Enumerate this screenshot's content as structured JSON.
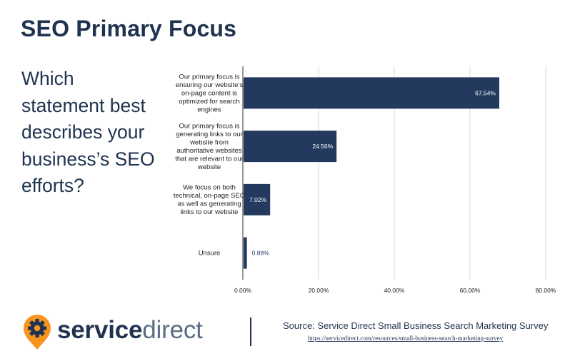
{
  "title": "SEO Primary Focus",
  "question": "Which statement best describes your business’s SEO efforts?",
  "colors": {
    "bar": "#233a5e",
    "grid": "#d9d9d9",
    "axis": "#333333",
    "accent": "#f7941d",
    "navy": "#1f3350"
  },
  "chart_data": {
    "type": "bar",
    "orientation": "horizontal",
    "categories": [
      [
        "Our primary focus is",
        "ensuring our website's",
        "on-page content is",
        "optimized for search",
        "engines"
      ],
      [
        "Our primary focus is",
        "generating links to our",
        "website from",
        "authoritative websites",
        "that are relevant to our",
        "website"
      ],
      [
        "We focus on both",
        "technical, on-page SEO",
        "as well as generating",
        "links to our website"
      ],
      [
        "Unsure"
      ]
    ],
    "values": [
      67.54,
      24.56,
      7.02,
      0.88
    ],
    "value_labels": [
      "67.54%",
      "24.56%",
      "7.02%",
      "0.88%"
    ],
    "xlim": [
      0,
      80
    ],
    "xticks": [
      0,
      20,
      40,
      60,
      80
    ],
    "xtick_labels": [
      "0.00%",
      "20.00%",
      "40.00%",
      "60.00%",
      "80.00%"
    ],
    "grid": true
  },
  "footer": {
    "brand_bold": "service",
    "brand_light": "direct",
    "logo_icon": "gear-pin-icon",
    "source": "Source: Service Direct Small Business Search Marketing Survey",
    "source_url": "https://servicedirect.com/resources/small-business-search-marketing-survey"
  }
}
